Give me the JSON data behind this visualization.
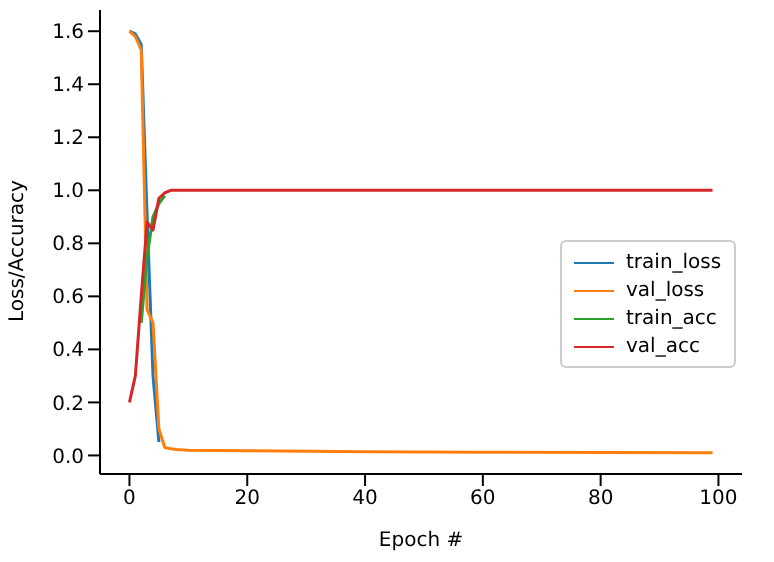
{
  "chart_data": {
    "type": "line",
    "xlabel": "Epoch #",
    "ylabel": "Loss/Accuracy",
    "x": [
      0,
      1,
      2,
      3,
      4,
      5,
      6,
      7,
      8,
      10,
      20,
      40,
      60,
      80,
      99
    ],
    "series": [
      {
        "name": "train_loss",
        "color": "#1f77b4",
        "values": [
          1.6,
          1.59,
          1.55,
          0.9,
          0.3,
          0.05,
          null,
          null,
          null,
          null,
          null,
          null,
          null,
          null,
          null
        ]
      },
      {
        "name": "val_loss",
        "color": "#ff7f0e",
        "values": [
          1.6,
          1.58,
          1.53,
          0.55,
          0.5,
          0.1,
          0.03,
          0.025,
          0.022,
          0.02,
          0.018,
          0.014,
          0.012,
          0.011,
          0.01
        ]
      },
      {
        "name": "train_acc",
        "color": "#2ca02c",
        "values": [
          null,
          null,
          0.5,
          0.75,
          0.9,
          0.95,
          0.98,
          null,
          null,
          null,
          null,
          null,
          null,
          null,
          null
        ]
      },
      {
        "name": "val_acc",
        "color": "#d62728",
        "values": [
          0.2,
          0.3,
          0.6,
          0.88,
          0.85,
          0.97,
          0.99,
          1.0,
          1.0,
          1.0,
          1.0,
          1.0,
          1.0,
          1.0,
          1.0
        ]
      }
    ],
    "xlim": [
      -5,
      104
    ],
    "xticks": [
      0,
      20,
      40,
      60,
      80,
      100
    ],
    "ylim": [
      -0.07,
      1.68
    ],
    "yticks": [
      {
        "value": 0,
        "label": "0.0"
      },
      0.2,
      0.4,
      0.6,
      0.8,
      {
        "value": 1,
        "label": "1.0"
      },
      1.2,
      1.4,
      1.6
    ],
    "grid": false,
    "legend": "center right",
    "marker": "none",
    "line_style": "solid"
  }
}
